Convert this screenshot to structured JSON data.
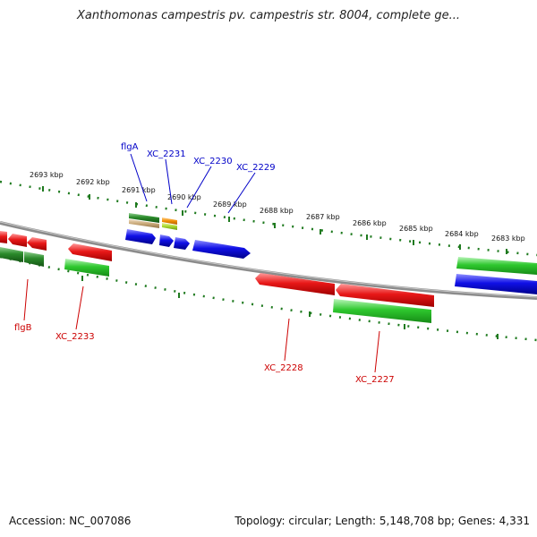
{
  "title": "Xanthomonas campestris pv. campestris str. 8004, complete ge...",
  "accession": "Accession: NC_007086",
  "summary": "Topology: circular; Length: 5,148,708 bp; Genes: 4,331",
  "colors": {
    "backbone": "#909090",
    "tick": "#1f7a1f",
    "red": "#e81818",
    "green": "#2ec82e",
    "dark_green": "#2a8a2a",
    "blue": "#1010e6",
    "orange": "#f08c00",
    "tan": "#c8a878",
    "label_top": "#0000c8",
    "label_bottom": "#cc0000"
  },
  "ruler_labels": [
    {
      "kbp": 2693,
      "text": "2693 kbp"
    },
    {
      "kbp": 2692,
      "text": "2692 kbp"
    },
    {
      "kbp": 2691,
      "text": "2691 kbp"
    },
    {
      "kbp": 2690,
      "text": "2690 kbp"
    },
    {
      "kbp": 2689,
      "text": "2689 kbp"
    },
    {
      "kbp": 2688,
      "text": "2688 kbp"
    },
    {
      "kbp": 2687,
      "text": "2687 kbp"
    },
    {
      "kbp": 2686,
      "text": "2686 kbp"
    },
    {
      "kbp": 2685,
      "text": "2685 kbp"
    },
    {
      "kbp": 2684,
      "text": "2684 kbp"
    },
    {
      "kbp": 2683,
      "text": "2683 kbp"
    }
  ],
  "gene_labels_top": [
    {
      "name": "flgA"
    },
    {
      "name": "XC_2231"
    },
    {
      "name": "XC_2230"
    },
    {
      "name": "XC_2229"
    }
  ],
  "gene_labels_bottom": [
    {
      "name": "flgB"
    },
    {
      "name": "XC_2233"
    },
    {
      "name": "XC_2228"
    },
    {
      "name": "XC_2227"
    }
  ]
}
